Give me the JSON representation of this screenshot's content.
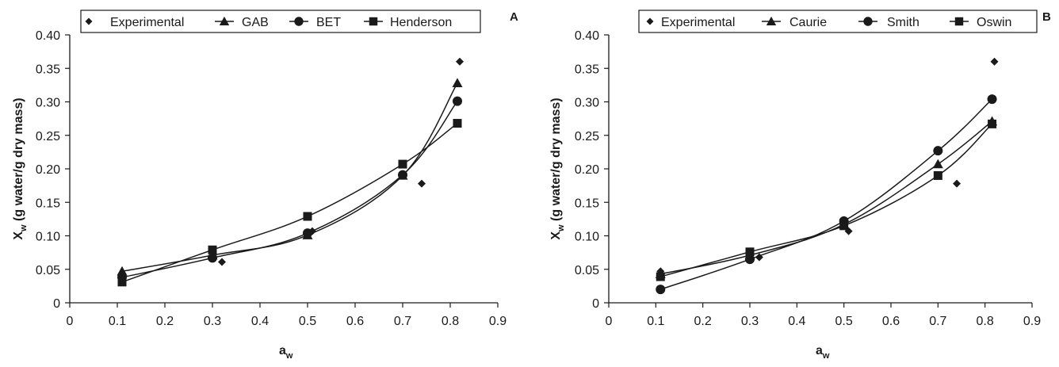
{
  "chart_data": [
    {
      "type": "scatter",
      "panel_label": "A",
      "xlabel": "a",
      "xlabel_sub": "w",
      "ylabel": "X",
      "ylabel_sub": "w",
      "ylabel_rest": " (g water/g dry mass)",
      "xlim": [
        0,
        0.9
      ],
      "ylim": [
        0,
        0.4
      ],
      "x_ticks": [
        "0",
        "0.1",
        "0.2",
        "0.3",
        "0.4",
        "0.5",
        "0.6",
        "0.7",
        "0.8",
        "0.9"
      ],
      "y_ticks": [
        "0",
        "0.05",
        "0.10",
        "0.15",
        "0.20",
        "0.25",
        "0.30",
        "0.35",
        "0.40"
      ],
      "grid": false,
      "legend_position": "top",
      "series": [
        {
          "name": "Experimental",
          "marker": "diamond",
          "line": false,
          "x": [
            0.32,
            0.51,
            0.74,
            0.82
          ],
          "y": [
            0.061,
            0.107,
            0.178,
            0.36
          ]
        },
        {
          "name": "GAB",
          "marker": "triangle",
          "line": true,
          "x": [
            0.11,
            0.3,
            0.5,
            0.7,
            0.815
          ],
          "y": [
            0.047,
            0.071,
            0.101,
            0.19,
            0.328
          ]
        },
        {
          "name": "BET",
          "marker": "circle",
          "line": true,
          "x": [
            0.11,
            0.3,
            0.5,
            0.7,
            0.815
          ],
          "y": [
            0.038,
            0.067,
            0.104,
            0.191,
            0.301
          ]
        },
        {
          "name": "Henderson",
          "marker": "square",
          "line": true,
          "x": [
            0.11,
            0.3,
            0.5,
            0.7,
            0.815
          ],
          "y": [
            0.031,
            0.079,
            0.129,
            0.207,
            0.268
          ]
        }
      ]
    },
    {
      "type": "scatter",
      "panel_label": "B",
      "xlabel": "a",
      "xlabel_sub": "w",
      "ylabel": "X",
      "ylabel_sub": "w",
      "ylabel_rest": " (g water/g dry mass)",
      "xlim": [
        0,
        0.9
      ],
      "ylim": [
        0,
        0.4
      ],
      "x_ticks": [
        "0",
        "0.1",
        "0.2",
        "0.3",
        "0.4",
        "0.5",
        "0.6",
        "0.7",
        "0.8",
        "0.9"
      ],
      "y_ticks": [
        "0",
        "0.05",
        "0.10",
        "0.15",
        "0.20",
        "0.25",
        "0.30",
        "0.35",
        "0.40"
      ],
      "grid": false,
      "legend_position": "top",
      "series": [
        {
          "name": "Experimental",
          "marker": "diamond",
          "line": false,
          "x": [
            0.11,
            0.32,
            0.51,
            0.74,
            0.82
          ],
          "y": [
            0.047,
            0.068,
            0.107,
            0.178,
            0.36
          ]
        },
        {
          "name": "Caurie",
          "marker": "triangle",
          "line": true,
          "x": [
            0.11,
            0.3,
            0.5,
            0.7,
            0.815
          ],
          "y": [
            0.043,
            0.071,
            0.117,
            0.207,
            0.271
          ]
        },
        {
          "name": "Smith",
          "marker": "circle",
          "line": true,
          "x": [
            0.11,
            0.3,
            0.5,
            0.7,
            0.815
          ],
          "y": [
            0.02,
            0.065,
            0.122,
            0.227,
            0.304
          ]
        },
        {
          "name": "Oswin",
          "marker": "square",
          "line": true,
          "x": [
            0.11,
            0.3,
            0.5,
            0.7,
            0.815
          ],
          "y": [
            0.039,
            0.076,
            0.115,
            0.19,
            0.267
          ]
        }
      ]
    }
  ]
}
